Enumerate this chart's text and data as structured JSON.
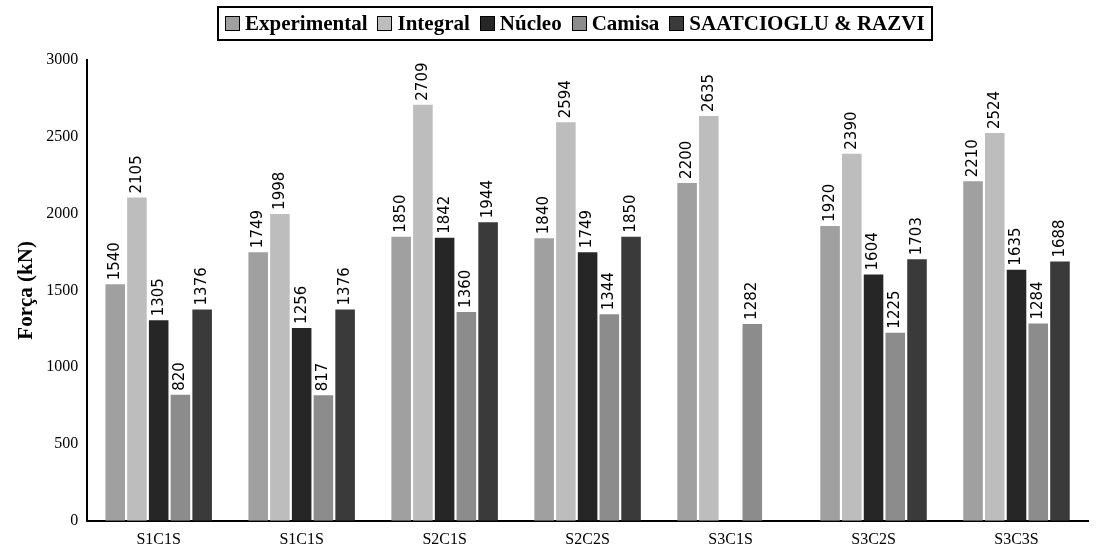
{
  "chart_data": {
    "type": "bar",
    "ylabel": "Força (kN)",
    "categories": [
      "S1C1S",
      "S1C1S",
      "S2C1S",
      "S2C2S",
      "S3C1S",
      "S3C2S",
      "S3C3S"
    ],
    "series": [
      {
        "name": "Experimental",
        "color": "#a0a0a0",
        "values": [
          1540,
          1749,
          1850,
          1840,
          2200,
          1920,
          2210
        ]
      },
      {
        "name": "Integral",
        "color": "#bdbdbd",
        "values": [
          2105,
          1998,
          2709,
          2594,
          2635,
          2390,
          2524
        ]
      },
      {
        "name": "Núcleo",
        "color": "#262626",
        "values": [
          1305,
          1256,
          1842,
          1749,
          null,
          1604,
          1635
        ]
      },
      {
        "name": "Camisa",
        "color": "#8c8c8c",
        "values": [
          820,
          817,
          1360,
          1344,
          1282,
          1225,
          1284
        ]
      },
      {
        "name": "SAATCIOGLU & RAZVI",
        "color": "#3a3a3a",
        "values": [
          1376,
          1376,
          1944,
          1850,
          null,
          1703,
          1688
        ]
      }
    ],
    "ylim": [
      0,
      3000
    ],
    "yticks": [
      0,
      500,
      1000,
      1500,
      2000,
      2500,
      3000
    ],
    "grid": false,
    "legend": "top",
    "data_labels": true
  }
}
